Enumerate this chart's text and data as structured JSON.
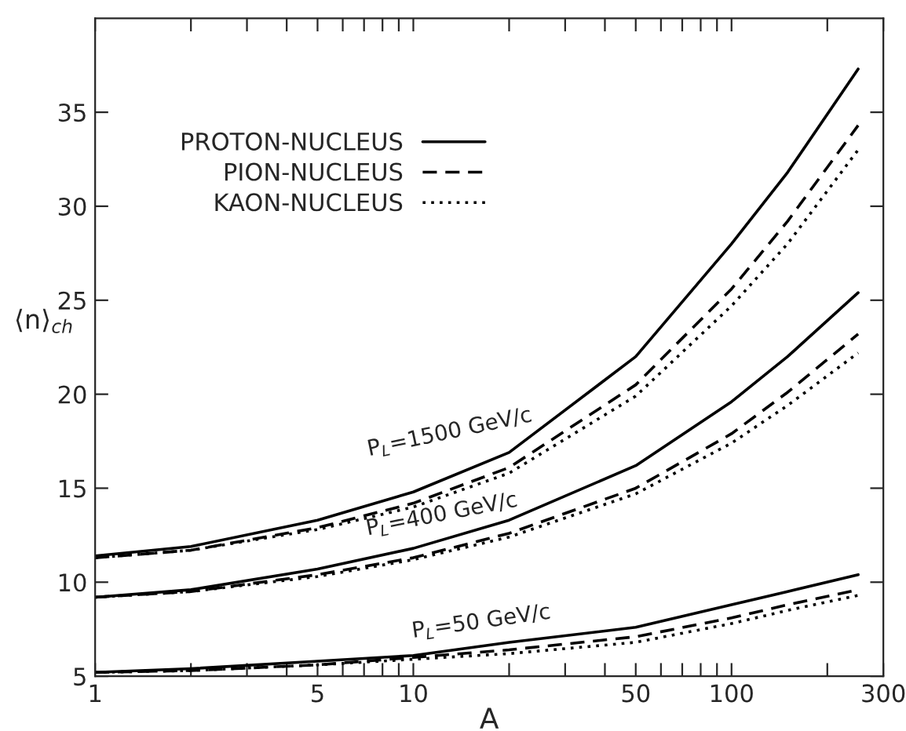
{
  "chart_data": {
    "type": "line",
    "xlabel": "A",
    "ylabel": "⟨n⟩$_{ch}$",
    "log": "x",
    "x": [
      1,
      2,
      5,
      10,
      20,
      50,
      100,
      150,
      250
    ],
    "series": [
      {
        "name": "PROTON-NUCLEUS",
        "color": "#000000",
        "line_style": "solid",
        "values": [
          11.4,
          11.9,
          13.3,
          14.8,
          16.9,
          22.0,
          28.0,
          31.8,
          37.3
        ]
      },
      {
        "name": "PION-NUCLEUS",
        "color": "#000000",
        "line_style": "dashed",
        "values": [
          11.3,
          11.7,
          12.9,
          14.2,
          16.1,
          20.5,
          25.6,
          29.2,
          34.3
        ]
      },
      {
        "name": "KAON-NUCLEUS",
        "color": "#000000",
        "line_style": "dotted",
        "values": [
          11.3,
          11.7,
          12.8,
          14.0,
          15.8,
          19.9,
          24.7,
          28.0,
          33.0
        ]
      },
      {
        "color": "#000000",
        "line_style": "solid",
        "values": [
          9.2,
          9.6,
          10.7,
          11.8,
          13.3,
          16.2,
          19.6,
          22.0,
          25.4
        ]
      },
      {
        "color": "#000000",
        "line_style": "dashed",
        "values": [
          9.2,
          9.5,
          10.4,
          11.3,
          12.6,
          15.0,
          17.9,
          20.1,
          23.2
        ]
      },
      {
        "color": "#000000",
        "line_style": "dotted",
        "values": [
          9.2,
          9.5,
          10.3,
          11.2,
          12.4,
          14.7,
          17.4,
          19.4,
          22.2
        ]
      },
      {
        "color": "#000000",
        "line_style": "solid",
        "values": [
          5.2,
          5.4,
          5.8,
          6.1,
          6.8,
          7.6,
          8.8,
          9.5,
          10.4
        ]
      },
      {
        "color": "#000000",
        "line_style": "dashed",
        "values": [
          5.2,
          5.3,
          5.6,
          6.0,
          6.4,
          7.1,
          8.1,
          8.8,
          9.6
        ]
      },
      {
        "color": "#000000",
        "line_style": "dotted",
        "values": [
          5.2,
          5.3,
          5.6,
          5.9,
          6.2,
          6.8,
          7.8,
          8.5,
          9.3
        ]
      }
    ],
    "annotations": [
      "P$_{L}$=1500 GeV/c",
      "P$_{L}$=400 GeV/c",
      "P$_{L}$=50 GeV/c"
    ],
    "xlim": [
      1,
      300
    ],
    "ylim": [
      5,
      40
    ],
    "xticks": [
      1,
      {
        "value": 2,
        "label": null
      },
      {
        "value": 3,
        "label": null
      },
      {
        "value": 4,
        "label": null
      },
      5,
      {
        "value": 6,
        "label": null
      },
      {
        "value": 7,
        "label": null
      },
      {
        "value": 8,
        "label": null
      },
      {
        "value": 9,
        "label": null
      },
      10,
      {
        "value": 20,
        "label": null
      },
      {
        "value": 30,
        "label": null
      },
      {
        "value": 40,
        "label": null
      },
      50,
      {
        "value": 60,
        "label": null
      },
      {
        "value": 70,
        "label": null
      },
      {
        "value": 80,
        "label": null
      },
      {
        "value": 90,
        "label": null
      },
      100,
      {
        "value": 200,
        "label": null
      },
      300
    ],
    "yticks": [
      5,
      10,
      15,
      20,
      25,
      30,
      35
    ],
    "legend": "top left",
    "grid": false,
    "marker": "none"
  }
}
